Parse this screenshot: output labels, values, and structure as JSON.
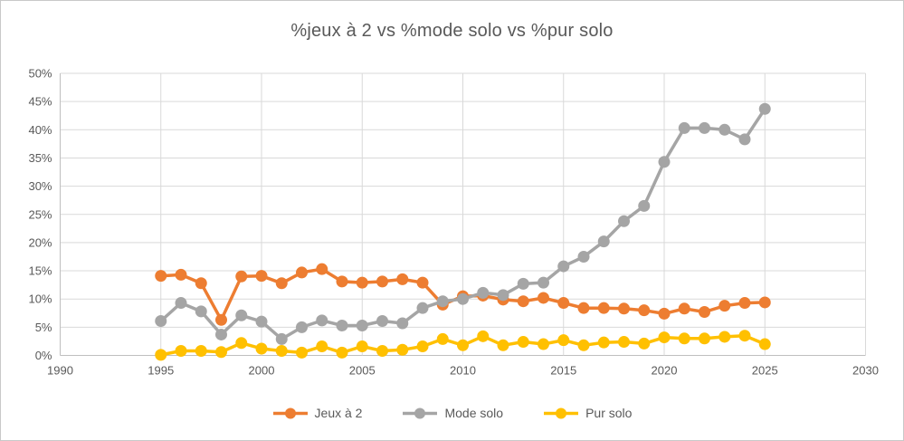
{
  "window": {
    "background": "#ffffff",
    "border_color": "#c9c9c9"
  },
  "chart_data": {
    "type": "line",
    "title": "%jeux à 2 vs %mode solo vs %pur solo",
    "xlabel": "",
    "ylabel": "",
    "xlim": [
      1990,
      2030
    ],
    "ylim": [
      0,
      50
    ],
    "grid": true,
    "legend_position": "bottom",
    "axis_text_color": "#595959",
    "grid_color": "#d9d9d9",
    "axis_line_color": "#bfbfbf",
    "x_ticks": [
      1990,
      1995,
      2000,
      2005,
      2010,
      2015,
      2020,
      2025,
      2030
    ],
    "y_ticks": [
      "0%",
      "5%",
      "10%",
      "15%",
      "20%",
      "25%",
      "30%",
      "35%",
      "40%",
      "45%",
      "50%"
    ],
    "x": [
      1995,
      1996,
      1997,
      1998,
      1999,
      2000,
      2001,
      2002,
      2003,
      2004,
      2005,
      2006,
      2007,
      2008,
      2009,
      2010,
      2011,
      2012,
      2013,
      2014,
      2015,
      2016,
      2017,
      2018,
      2019,
      2020,
      2021,
      2022,
      2023,
      2024,
      2025
    ],
    "series": [
      {
        "name": "Jeux à 2",
        "color": "#ED7D31",
        "values": [
          14.1,
          14.3,
          12.8,
          6.3,
          14.0,
          14.1,
          12.8,
          14.7,
          15.3,
          13.1,
          12.9,
          13.1,
          13.5,
          12.9,
          9.0,
          10.5,
          10.6,
          9.9,
          9.6,
          10.2,
          9.3,
          8.4,
          8.4,
          8.3,
          8.0,
          7.4,
          8.3,
          7.7,
          8.8,
          9.3,
          9.4
        ]
      },
      {
        "name": "Mode solo",
        "color": "#A5A5A5",
        "values": [
          6.1,
          9.3,
          7.8,
          3.7,
          7.1,
          6.0,
          2.9,
          5.0,
          6.2,
          5.3,
          5.3,
          6.1,
          5.7,
          8.4,
          9.6,
          10.0,
          11.1,
          10.7,
          12.7,
          12.9,
          15.8,
          17.5,
          20.2,
          23.8,
          26.5,
          34.3,
          40.3,
          40.3,
          40.0,
          38.3,
          43.7
        ]
      },
      {
        "name": "Pur solo",
        "color": "#FFC000",
        "values": [
          0.1,
          0.8,
          0.8,
          0.6,
          2.2,
          1.2,
          0.8,
          0.5,
          1.6,
          0.5,
          1.6,
          0.8,
          1.0,
          1.6,
          2.9,
          1.8,
          3.4,
          1.8,
          2.4,
          2.0,
          2.7,
          1.8,
          2.3,
          2.4,
          2.1,
          3.2,
          3.0,
          3.0,
          3.3,
          3.5,
          2.0
        ]
      }
    ]
  }
}
